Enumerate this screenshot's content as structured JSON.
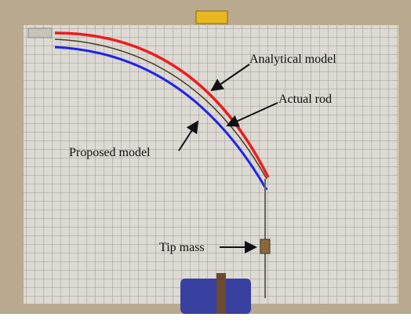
{
  "annotations": {
    "analytical": "Analytical model",
    "actual": "Actual rod",
    "proposed": "Proposed model",
    "tip": "Tip mass"
  }
}
